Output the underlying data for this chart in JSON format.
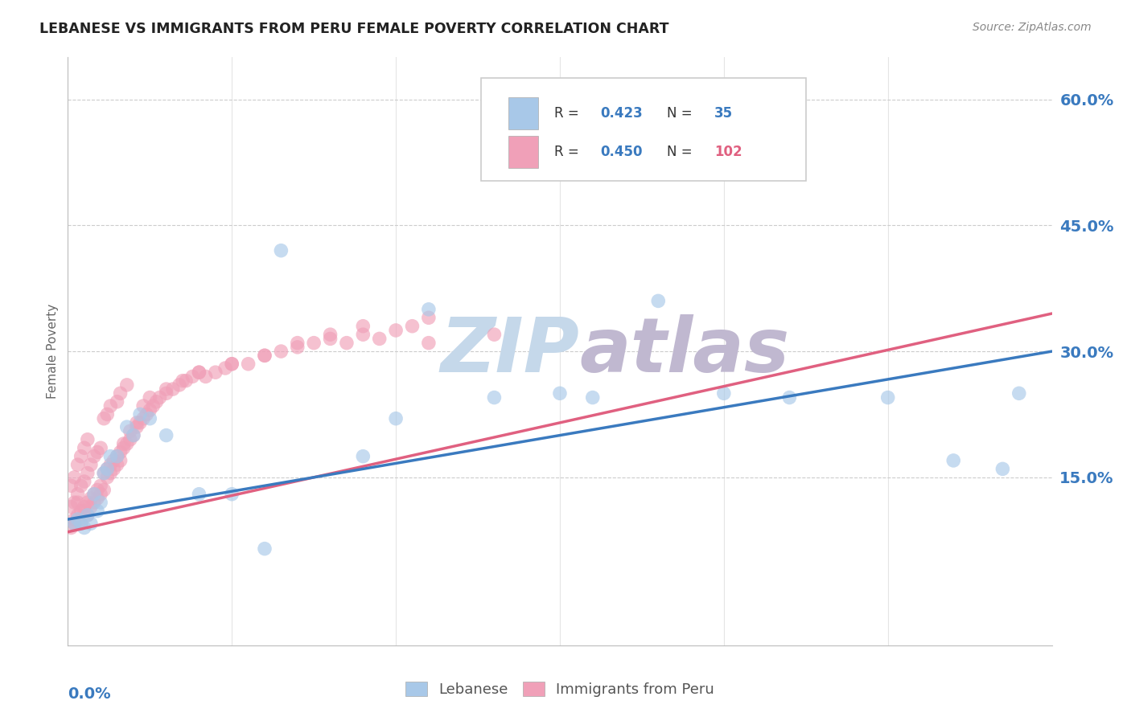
{
  "title": "LEBANESE VS IMMIGRANTS FROM PERU FEMALE POVERTY CORRELATION CHART",
  "source": "Source: ZipAtlas.com",
  "ylabel": "Female Poverty",
  "blue_color": "#a8c8e8",
  "pink_color": "#f0a0b8",
  "blue_line_color": "#3a7abf",
  "pink_line_color": "#e06080",
  "watermark_zip_color": "#c5d8ea",
  "watermark_atlas_color": "#c0b8d0",
  "background_color": "#ffffff",
  "grid_color": "#cccccc",
  "title_color": "#222222",
  "source_color": "#888888",
  "axis_label_color": "#3a7abf",
  "xlim": [
    0.0,
    0.3
  ],
  "ylim": [
    -0.05,
    0.65
  ],
  "blue_x": [
    0.002,
    0.003,
    0.004,
    0.005,
    0.006,
    0.007,
    0.008,
    0.009,
    0.01,
    0.011,
    0.012,
    0.013,
    0.015,
    0.018,
    0.02,
    0.022,
    0.025,
    0.03,
    0.04,
    0.05,
    0.06,
    0.065,
    0.09,
    0.1,
    0.11,
    0.13,
    0.15,
    0.16,
    0.18,
    0.2,
    0.22,
    0.25,
    0.27,
    0.285,
    0.29
  ],
  "blue_y": [
    0.095,
    0.1,
    0.095,
    0.09,
    0.105,
    0.095,
    0.13,
    0.11,
    0.12,
    0.155,
    0.16,
    0.175,
    0.175,
    0.21,
    0.2,
    0.225,
    0.22,
    0.2,
    0.13,
    0.13,
    0.065,
    0.42,
    0.175,
    0.22,
    0.35,
    0.245,
    0.25,
    0.245,
    0.36,
    0.25,
    0.245,
    0.245,
    0.17,
    0.16,
    0.25
  ],
  "pink_x": [
    0.001,
    0.001,
    0.001,
    0.002,
    0.002,
    0.002,
    0.003,
    0.003,
    0.003,
    0.004,
    0.004,
    0.004,
    0.005,
    0.005,
    0.005,
    0.006,
    0.006,
    0.006,
    0.007,
    0.007,
    0.008,
    0.008,
    0.009,
    0.009,
    0.01,
    0.01,
    0.011,
    0.011,
    0.012,
    0.012,
    0.013,
    0.013,
    0.014,
    0.015,
    0.015,
    0.016,
    0.016,
    0.017,
    0.018,
    0.018,
    0.019,
    0.02,
    0.021,
    0.022,
    0.023,
    0.024,
    0.025,
    0.026,
    0.027,
    0.028,
    0.03,
    0.032,
    0.034,
    0.036,
    0.038,
    0.04,
    0.042,
    0.045,
    0.048,
    0.05,
    0.055,
    0.06,
    0.065,
    0.07,
    0.075,
    0.08,
    0.085,
    0.09,
    0.095,
    0.1,
    0.105,
    0.11,
    0.002,
    0.003,
    0.004,
    0.005,
    0.006,
    0.007,
    0.008,
    0.009,
    0.01,
    0.011,
    0.012,
    0.013,
    0.014,
    0.015,
    0.016,
    0.017,
    0.019,
    0.021,
    0.023,
    0.025,
    0.03,
    0.035,
    0.04,
    0.05,
    0.06,
    0.07,
    0.08,
    0.09,
    0.11,
    0.13
  ],
  "pink_y": [
    0.09,
    0.115,
    0.14,
    0.095,
    0.12,
    0.15,
    0.105,
    0.13,
    0.165,
    0.11,
    0.14,
    0.175,
    0.115,
    0.145,
    0.185,
    0.12,
    0.155,
    0.195,
    0.125,
    0.165,
    0.13,
    0.175,
    0.135,
    0.18,
    0.14,
    0.185,
    0.155,
    0.22,
    0.16,
    0.225,
    0.165,
    0.235,
    0.17,
    0.175,
    0.24,
    0.18,
    0.25,
    0.185,
    0.19,
    0.26,
    0.195,
    0.2,
    0.21,
    0.215,
    0.22,
    0.225,
    0.23,
    0.235,
    0.24,
    0.245,
    0.25,
    0.255,
    0.26,
    0.265,
    0.27,
    0.275,
    0.27,
    0.275,
    0.28,
    0.285,
    0.285,
    0.295,
    0.3,
    0.305,
    0.31,
    0.315,
    0.31,
    0.32,
    0.315,
    0.325,
    0.33,
    0.34,
    0.1,
    0.12,
    0.095,
    0.11,
    0.105,
    0.115,
    0.12,
    0.125,
    0.13,
    0.135,
    0.15,
    0.155,
    0.16,
    0.165,
    0.17,
    0.19,
    0.205,
    0.215,
    0.235,
    0.245,
    0.255,
    0.265,
    0.275,
    0.285,
    0.295,
    0.31,
    0.32,
    0.33,
    0.31,
    0.32
  ],
  "blue_line_x0": 0.0,
  "blue_line_y0": 0.1,
  "blue_line_x1": 0.3,
  "blue_line_y1": 0.3,
  "pink_line_x0": 0.0,
  "pink_line_y0": 0.085,
  "pink_line_x1": 0.3,
  "pink_line_y1": 0.345
}
